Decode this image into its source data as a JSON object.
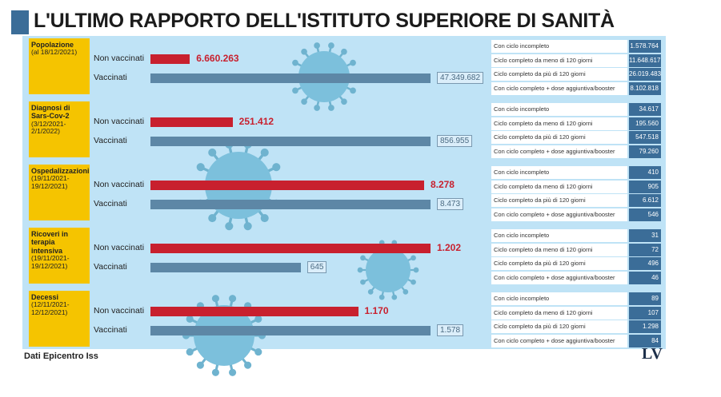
{
  "title": "L'ULTIMO RAPPORTO DELL'ISTITUTO SUPERIORE DI SANITÀ",
  "sections": [
    {
      "label": "Popolazione",
      "period": "(al 18/12/2021)",
      "rows": [
        {
          "name": "Non vaccinati",
          "value": 6660263,
          "label": "6.660.263"
        },
        {
          "name": "Vaccinati",
          "value": 47349682,
          "label": "47.349.682"
        }
      ],
      "breakdown": [
        {
          "label": "Con ciclo incompleto",
          "value": "1.578.764"
        },
        {
          "label": "Ciclo completo da meno di 120 giorni",
          "value": "11.648.617"
        },
        {
          "label": "Ciclo completo da più di 120 giorni",
          "value": "26.019.483"
        },
        {
          "label": "Con ciclo completo + dose aggiuntiva/booster",
          "value": "8.102.818"
        }
      ]
    },
    {
      "label": "Diagnosi di Sars-Cov-2",
      "period": "(3/12/2021-2/1/2022)",
      "rows": [
        {
          "name": "Non vaccinati",
          "value": 251412,
          "label": "251.412"
        },
        {
          "name": "Vaccinati",
          "value": 856955,
          "label": "856.955"
        }
      ],
      "breakdown": [
        {
          "label": "Con ciclo incompleto",
          "value": "34.617"
        },
        {
          "label": "Ciclo completo da meno di 120 giorni",
          "value": "195.560"
        },
        {
          "label": "Ciclo completo da più di 120 giorni",
          "value": "547.518"
        },
        {
          "label": "Con ciclo completo + dose aggiuntiva/booster",
          "value": "79.260"
        }
      ]
    },
    {
      "label": "Ospedalizzazioni",
      "period": "(19/11/2021-19/12/2021)",
      "rows": [
        {
          "name": "Non vaccinati",
          "value": 8278,
          "label": "8.278"
        },
        {
          "name": "Vaccinati",
          "value": 8473,
          "label": "8.473"
        }
      ],
      "breakdown": [
        {
          "label": "Con ciclo incompleto",
          "value": "410"
        },
        {
          "label": "Ciclo completo da meno di 120 giorni",
          "value": "905"
        },
        {
          "label": "Ciclo completo da più di 120 giorni",
          "value": "6.612"
        },
        {
          "label": "Con ciclo completo + dose aggiuntiva/booster",
          "value": "546"
        }
      ]
    },
    {
      "label": "Ricoveri in terapia intensiva",
      "period": "(19/11/2021-19/12/2021)",
      "rows": [
        {
          "name": "Non vaccinati",
          "value": 1202,
          "label": "1.202"
        },
        {
          "name": "Vaccinati",
          "value": 645,
          "label": "645"
        }
      ],
      "breakdown": [
        {
          "label": "Con ciclo incompleto",
          "value": "31"
        },
        {
          "label": "Ciclo completo da meno di 120 giorni",
          "value": "72"
        },
        {
          "label": "Ciclo completo da più di 120 giorni",
          "value": "496"
        },
        {
          "label": "Con ciclo completo + dose aggiuntiva/booster",
          "value": "46"
        }
      ]
    },
    {
      "label": "Decessi",
      "period": "(12/11/2021-12/12/2021)",
      "rows": [
        {
          "name": "Non vaccinati",
          "value": 1170,
          "label": "1.170"
        },
        {
          "name": "Vaccinati",
          "value": 1578,
          "label": "1.578"
        }
      ],
      "breakdown": [
        {
          "label": "Con ciclo incompleto",
          "value": "89"
        },
        {
          "label": "Ciclo completo da meno di 120 giorni",
          "value": "107"
        },
        {
          "label": "Ciclo completo da più di 120 giorni",
          "value": "1.298"
        },
        {
          "label": "Con ciclo completo + dose aggiuntiva/booster",
          "value": "84"
        }
      ]
    }
  ],
  "source": "Dati Epicentro Iss",
  "logo": "LV"
}
